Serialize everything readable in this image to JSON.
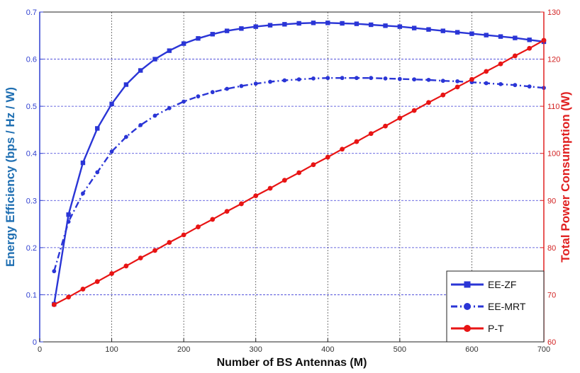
{
  "chart_data": {
    "type": "line",
    "xlabel": "Number of BS Antennas (M)",
    "ylabel_left": "Energy Efficiency (bps / Hz / W)",
    "ylabel_right": "Total Power Consumption (W)",
    "xlim": [
      0,
      700
    ],
    "ylim_left": [
      0,
      0.7
    ],
    "ylim_right": [
      60,
      130
    ],
    "grid": true,
    "legend_position": "bottom-right",
    "x_ticks": [
      "0",
      "100",
      "200",
      "300",
      "400",
      "500",
      "600",
      "700"
    ],
    "left_ticks": [
      "0",
      "0.1",
      "0.2",
      "0.3",
      "0.4",
      "0.5",
      "0.6",
      "0.7"
    ],
    "right_ticks": [
      "60",
      "70",
      "80",
      "90",
      "100",
      "110",
      "120",
      "130"
    ],
    "x": [
      20,
      40,
      60,
      80,
      100,
      120,
      140,
      160,
      180,
      200,
      220,
      240,
      260,
      280,
      300,
      320,
      340,
      360,
      380,
      400,
      420,
      440,
      460,
      480,
      500,
      520,
      540,
      560,
      580,
      600,
      620,
      640,
      660,
      680,
      700
    ],
    "series": [
      {
        "name": "EE-ZF",
        "axis": "left",
        "color": "#2a35d6",
        "line_style": "solid",
        "marker": "square",
        "values": [
          0.08,
          0.27,
          0.38,
          0.453,
          0.505,
          0.546,
          0.576,
          0.6,
          0.618,
          0.633,
          0.644,
          0.653,
          0.66,
          0.665,
          0.669,
          0.672,
          0.674,
          0.676,
          0.677,
          0.677,
          0.676,
          0.675,
          0.673,
          0.671,
          0.669,
          0.666,
          0.663,
          0.66,
          0.657,
          0.654,
          0.651,
          0.648,
          0.645,
          0.641,
          0.637
        ]
      },
      {
        "name": "EE-MRT",
        "axis": "left",
        "color": "#2a35d6",
        "line_style": "dash-dot",
        "marker": "circle",
        "values": [
          0.15,
          0.255,
          0.315,
          0.36,
          0.404,
          0.435,
          0.46,
          0.48,
          0.496,
          0.51,
          0.521,
          0.53,
          0.537,
          0.543,
          0.548,
          0.552,
          0.555,
          0.557,
          0.559,
          0.56,
          0.56,
          0.56,
          0.56,
          0.559,
          0.558,
          0.557,
          0.556,
          0.554,
          0.553,
          0.551,
          0.549,
          0.547,
          0.545,
          0.542,
          0.539
        ]
      },
      {
        "name": "P-T",
        "axis": "right",
        "color": "#e81414",
        "line_style": "solid",
        "marker": "circle",
        "values": [
          67.9,
          69.5,
          71.2,
          72.8,
          74.5,
          76.1,
          77.8,
          79.4,
          81.1,
          82.7,
          84.4,
          86.0,
          87.7,
          89.3,
          91.0,
          92.6,
          94.3,
          95.9,
          97.6,
          99.2,
          100.9,
          102.5,
          104.2,
          105.8,
          107.5,
          109.1,
          110.8,
          112.4,
          114.1,
          115.7,
          117.4,
          119.0,
          120.7,
          122.3,
          124.0
        ]
      }
    ]
  }
}
